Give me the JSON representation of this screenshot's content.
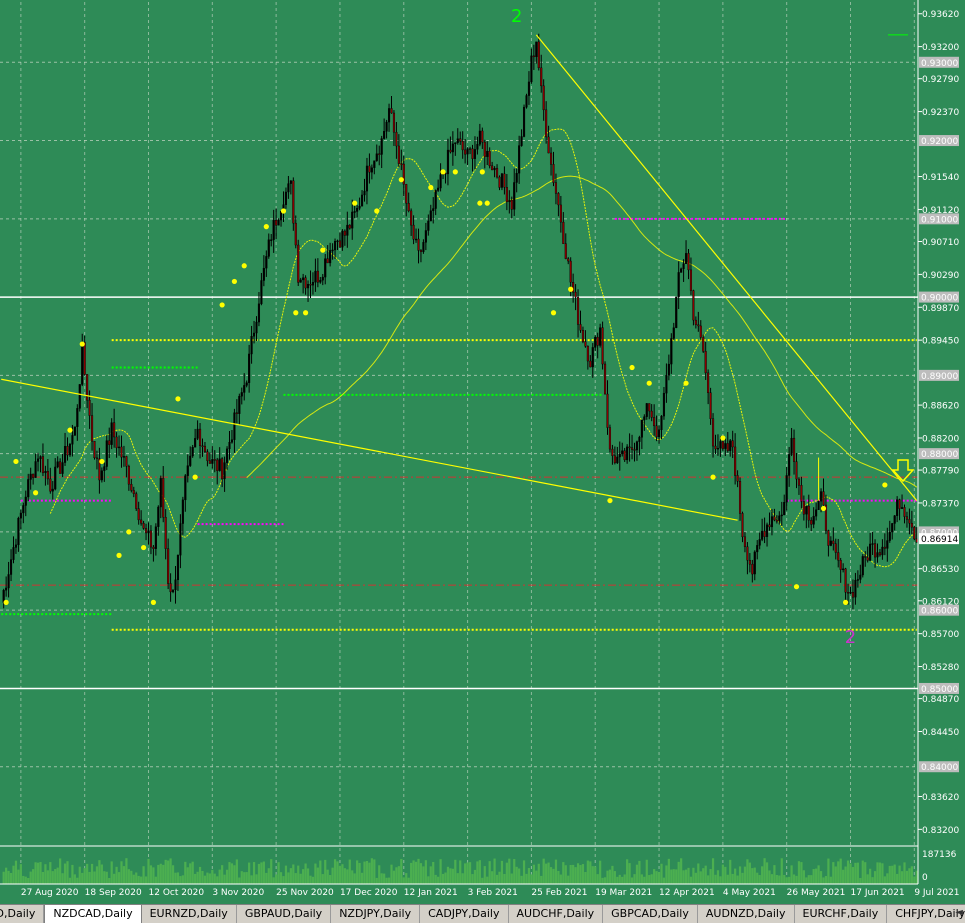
{
  "window": {
    "symbol": "NZDCAD",
    "timeframe": "Daily"
  },
  "colors": {
    "background": "#2e8b57",
    "grid": "#c8d8c8",
    "bull_candle": "#000000",
    "bear_candle": "#8b0000",
    "wick": "#000000",
    "trendline": "#ffff00",
    "fractal_dot": "#ffff00",
    "support_dotted": "#00ff00",
    "resistance_dotted": "#ff00ff",
    "red_dashdot": "#cd3333",
    "white_line": "#ffffff",
    "volume": "#4caf50",
    "wave_label_top": "#00ff00",
    "wave_label_bottom": "#cc33cc"
  },
  "tabs": [
    "ZD,Daily",
    "NZDCAD,Daily",
    "EURNZD,Daily",
    "GBPAUD,Daily",
    "NZDJPY,Daily",
    "CADJPY,Daily",
    "AUDCHF,Daily",
    "GBPCAD,Daily",
    "AUDNZD,Daily",
    "EURCHF,Daily",
    "CHFJPY,Daily"
  ],
  "active_tab": 1,
  "chart_data": {
    "type": "candlestick",
    "title": "",
    "ylim": [
      0.83,
      0.9377
    ],
    "price_ticks": [
      "0.93620",
      "0.93200",
      "0.92790",
      "0.92370",
      "0.91540",
      "0.91120",
      "0.90710",
      "0.90290",
      "0.89870",
      "0.89450",
      "0.88620",
      "0.88200",
      "0.87790",
      "0.87370",
      "0.86530",
      "0.86120",
      "0.85700",
      "0.85280",
      "0.84870",
      "0.84450",
      "0.83620",
      "0.83200"
    ],
    "highlighted_levels": [
      "0.93000",
      "0.92000",
      "0.91000",
      "0.90000",
      "0.89000",
      "0.88000",
      "0.87000",
      "0.86000",
      "0.85000",
      "0.84000"
    ],
    "current_price": "0.86914",
    "date_labels": [
      "27 Aug 2020",
      "18 Sep 2020",
      "12 Oct 2020",
      "3 Nov 2020",
      "25 Nov 2020",
      "17 Dec 2020",
      "12 Jan 2021",
      "3 Feb 2021",
      "25 Feb 2021",
      "19 Mar 2021",
      "12 Apr 2021",
      "4 May 2021",
      "26 May 2021",
      "17 Jun 2021",
      "9 Jul 2021"
    ],
    "ohlc_close_path": [
      [
        0,
        0.861
      ],
      [
        5,
        0.868
      ],
      [
        10,
        0.875
      ],
      [
        15,
        0.88
      ],
      [
        20,
        0.876
      ],
      [
        25,
        0.879
      ],
      [
        30,
        0.883
      ],
      [
        33,
        0.893
      ],
      [
        37,
        0.882
      ],
      [
        40,
        0.877
      ],
      [
        45,
        0.883
      ],
      [
        50,
        0.879
      ],
      [
        55,
        0.874
      ],
      [
        58,
        0.87
      ],
      [
        62,
        0.868
      ],
      [
        65,
        0.876
      ],
      [
        68,
        0.864
      ],
      [
        70,
        0.862
      ],
      [
        75,
        0.876
      ],
      [
        80,
        0.883
      ],
      [
        85,
        0.879
      ],
      [
        90,
        0.878
      ],
      [
        95,
        0.884
      ],
      [
        100,
        0.89
      ],
      [
        105,
        0.9
      ],
      [
        110,
        0.908
      ],
      [
        115,
        0.913
      ],
      [
        118,
        0.914
      ],
      [
        121,
        0.903
      ],
      [
        125,
        0.902
      ],
      [
        130,
        0.903
      ],
      [
        135,
        0.907
      ],
      [
        140,
        0.908
      ],
      [
        145,
        0.911
      ],
      [
        150,
        0.917
      ],
      [
        155,
        0.92
      ],
      [
        158,
        0.924
      ],
      [
        162,
        0.918
      ],
      [
        166,
        0.91
      ],
      [
        170,
        0.905
      ],
      [
        175,
        0.91
      ],
      [
        180,
        0.916
      ],
      [
        185,
        0.92
      ],
      [
        190,
        0.918
      ],
      [
        195,
        0.92
      ],
      [
        200,
        0.917
      ],
      [
        205,
        0.914
      ],
      [
        208,
        0.912
      ],
      [
        212,
        0.921
      ],
      [
        216,
        0.93
      ],
      [
        218,
        0.933
      ],
      [
        220,
        0.926
      ],
      [
        224,
        0.917
      ],
      [
        228,
        0.91
      ],
      [
        232,
        0.902
      ],
      [
        236,
        0.896
      ],
      [
        240,
        0.892
      ],
      [
        244,
        0.896
      ],
      [
        248,
        0.88
      ],
      [
        252,
        0.879
      ],
      [
        256,
        0.88
      ],
      [
        260,
        0.883
      ],
      [
        264,
        0.886
      ],
      [
        268,
        0.882
      ],
      [
        272,
        0.892
      ],
      [
        276,
        0.902
      ],
      [
        279,
        0.906
      ],
      [
        282,
        0.898
      ],
      [
        286,
        0.893
      ],
      [
        290,
        0.882
      ],
      [
        294,
        0.88
      ],
      [
        298,
        0.881
      ],
      [
        302,
        0.87
      ],
      [
        306,
        0.865
      ],
      [
        310,
        0.87
      ],
      [
        314,
        0.872
      ],
      [
        318,
        0.872
      ],
      [
        322,
        0.882
      ],
      [
        326,
        0.874
      ],
      [
        330,
        0.872
      ],
      [
        334,
        0.874
      ],
      [
        338,
        0.868
      ],
      [
        342,
        0.865
      ],
      [
        346,
        0.862
      ],
      [
        350,
        0.865
      ],
      [
        354,
        0.868
      ],
      [
        358,
        0.868
      ],
      [
        362,
        0.87
      ],
      [
        366,
        0.874
      ],
      [
        370,
        0.872
      ],
      [
        373,
        0.8691
      ]
    ],
    "fractal_dots": [
      [
        2,
        0.861
      ],
      [
        6,
        0.879
      ],
      [
        14,
        0.875
      ],
      [
        28,
        0.883
      ],
      [
        33,
        0.894
      ],
      [
        41,
        0.879
      ],
      [
        48,
        0.867
      ],
      [
        52,
        0.87
      ],
      [
        58,
        0.868
      ],
      [
        62,
        0.861
      ],
      [
        72,
        0.887
      ],
      [
        79,
        0.877
      ],
      [
        90,
        0.899
      ],
      [
        95,
        0.902
      ],
      [
        99,
        0.904
      ],
      [
        108,
        0.909
      ],
      [
        115,
        0.911
      ],
      [
        120,
        0.898
      ],
      [
        124,
        0.898
      ],
      [
        131,
        0.906
      ],
      [
        144,
        0.912
      ],
      [
        153,
        0.911
      ],
      [
        163,
        0.915
      ],
      [
        175,
        0.914
      ],
      [
        180,
        0.916
      ],
      [
        185,
        0.916
      ],
      [
        195,
        0.912
      ],
      [
        196,
        0.916
      ],
      [
        198,
        0.912
      ],
      [
        225,
        0.898
      ],
      [
        232,
        0.901
      ],
      [
        248,
        0.874
      ],
      [
        257,
        0.891
      ],
      [
        264,
        0.889
      ],
      [
        279,
        0.889
      ],
      [
        290,
        0.877
      ],
      [
        294,
        0.882
      ],
      [
        324,
        0.863
      ],
      [
        335,
        0.873
      ],
      [
        344,
        0.861
      ],
      [
        360,
        0.876
      ]
    ],
    "volume_label": "187136",
    "volume_zero_label": "0",
    "wave_labels": {
      "top": "2",
      "bottom": "2"
    }
  }
}
